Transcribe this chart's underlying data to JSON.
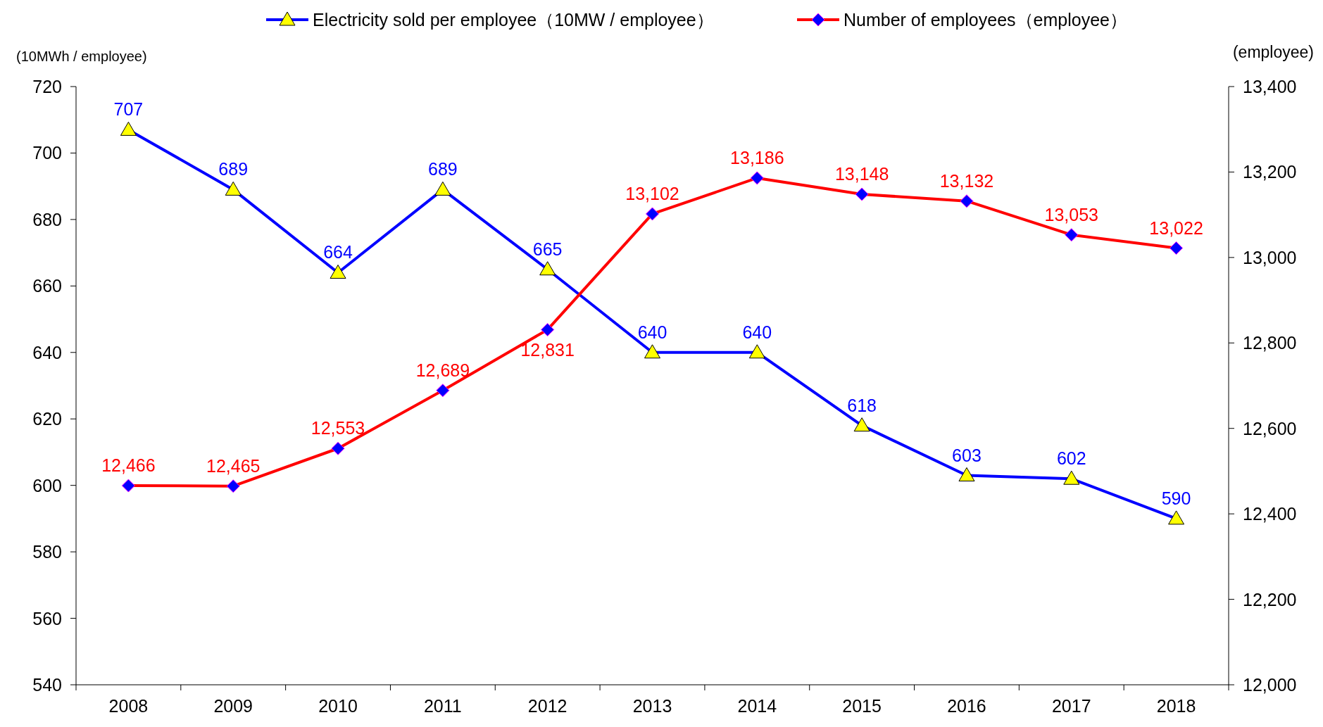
{
  "chart_data": {
    "type": "line",
    "categories": [
      "2008",
      "2009",
      "2010",
      "2011",
      "2012",
      "2013",
      "2014",
      "2015",
      "2016",
      "2017",
      "2018"
    ],
    "series": [
      {
        "name": "Electricity sold per employee（10MW / employee）",
        "color": "#0000ff",
        "marker": "triangle",
        "values": [
          707,
          689,
          664,
          689,
          665,
          640,
          640,
          618,
          603,
          602,
          590
        ],
        "value_labels": [
          "707",
          "689",
          "664",
          "689",
          "665",
          "640",
          "640",
          "618",
          "603",
          "602",
          "590"
        ]
      },
      {
        "name": "Number of employees（employee）",
        "color": "#ff0000",
        "marker": "diamond",
        "axis": "y2",
        "values": [
          12466,
          12465,
          12553,
          12689,
          12831,
          13102,
          13186,
          13148,
          13132,
          13053,
          13022
        ],
        "value_labels": [
          "12,466",
          "12,465",
          "12,553",
          "12,689",
          "12,831",
          "13,102",
          "13,186",
          "13,148",
          "13,132",
          "13,053",
          "13,022"
        ]
      }
    ],
    "ylabel": "(10MWh / employee)",
    "y2label": "(employee)",
    "ylim": [
      540,
      720
    ],
    "yticks": [
      540,
      560,
      580,
      600,
      620,
      640,
      660,
      680,
      700,
      720
    ],
    "y2lim": [
      12000,
      13400
    ],
    "y2ticks": [
      {
        "value": 12000,
        "label": "12,000"
      },
      {
        "value": 12200,
        "label": "12,200"
      },
      {
        "value": 12400,
        "label": "12,400"
      },
      {
        "value": 12600,
        "label": "12,600"
      },
      {
        "value": 12800,
        "label": "12,800"
      },
      {
        "value": 13000,
        "label": "13,000"
      },
      {
        "value": 13200,
        "label": "13,200"
      },
      {
        "value": 13400,
        "label": "13,400"
      }
    ],
    "grid": false,
    "legend": "top",
    "line_style": "solid"
  }
}
